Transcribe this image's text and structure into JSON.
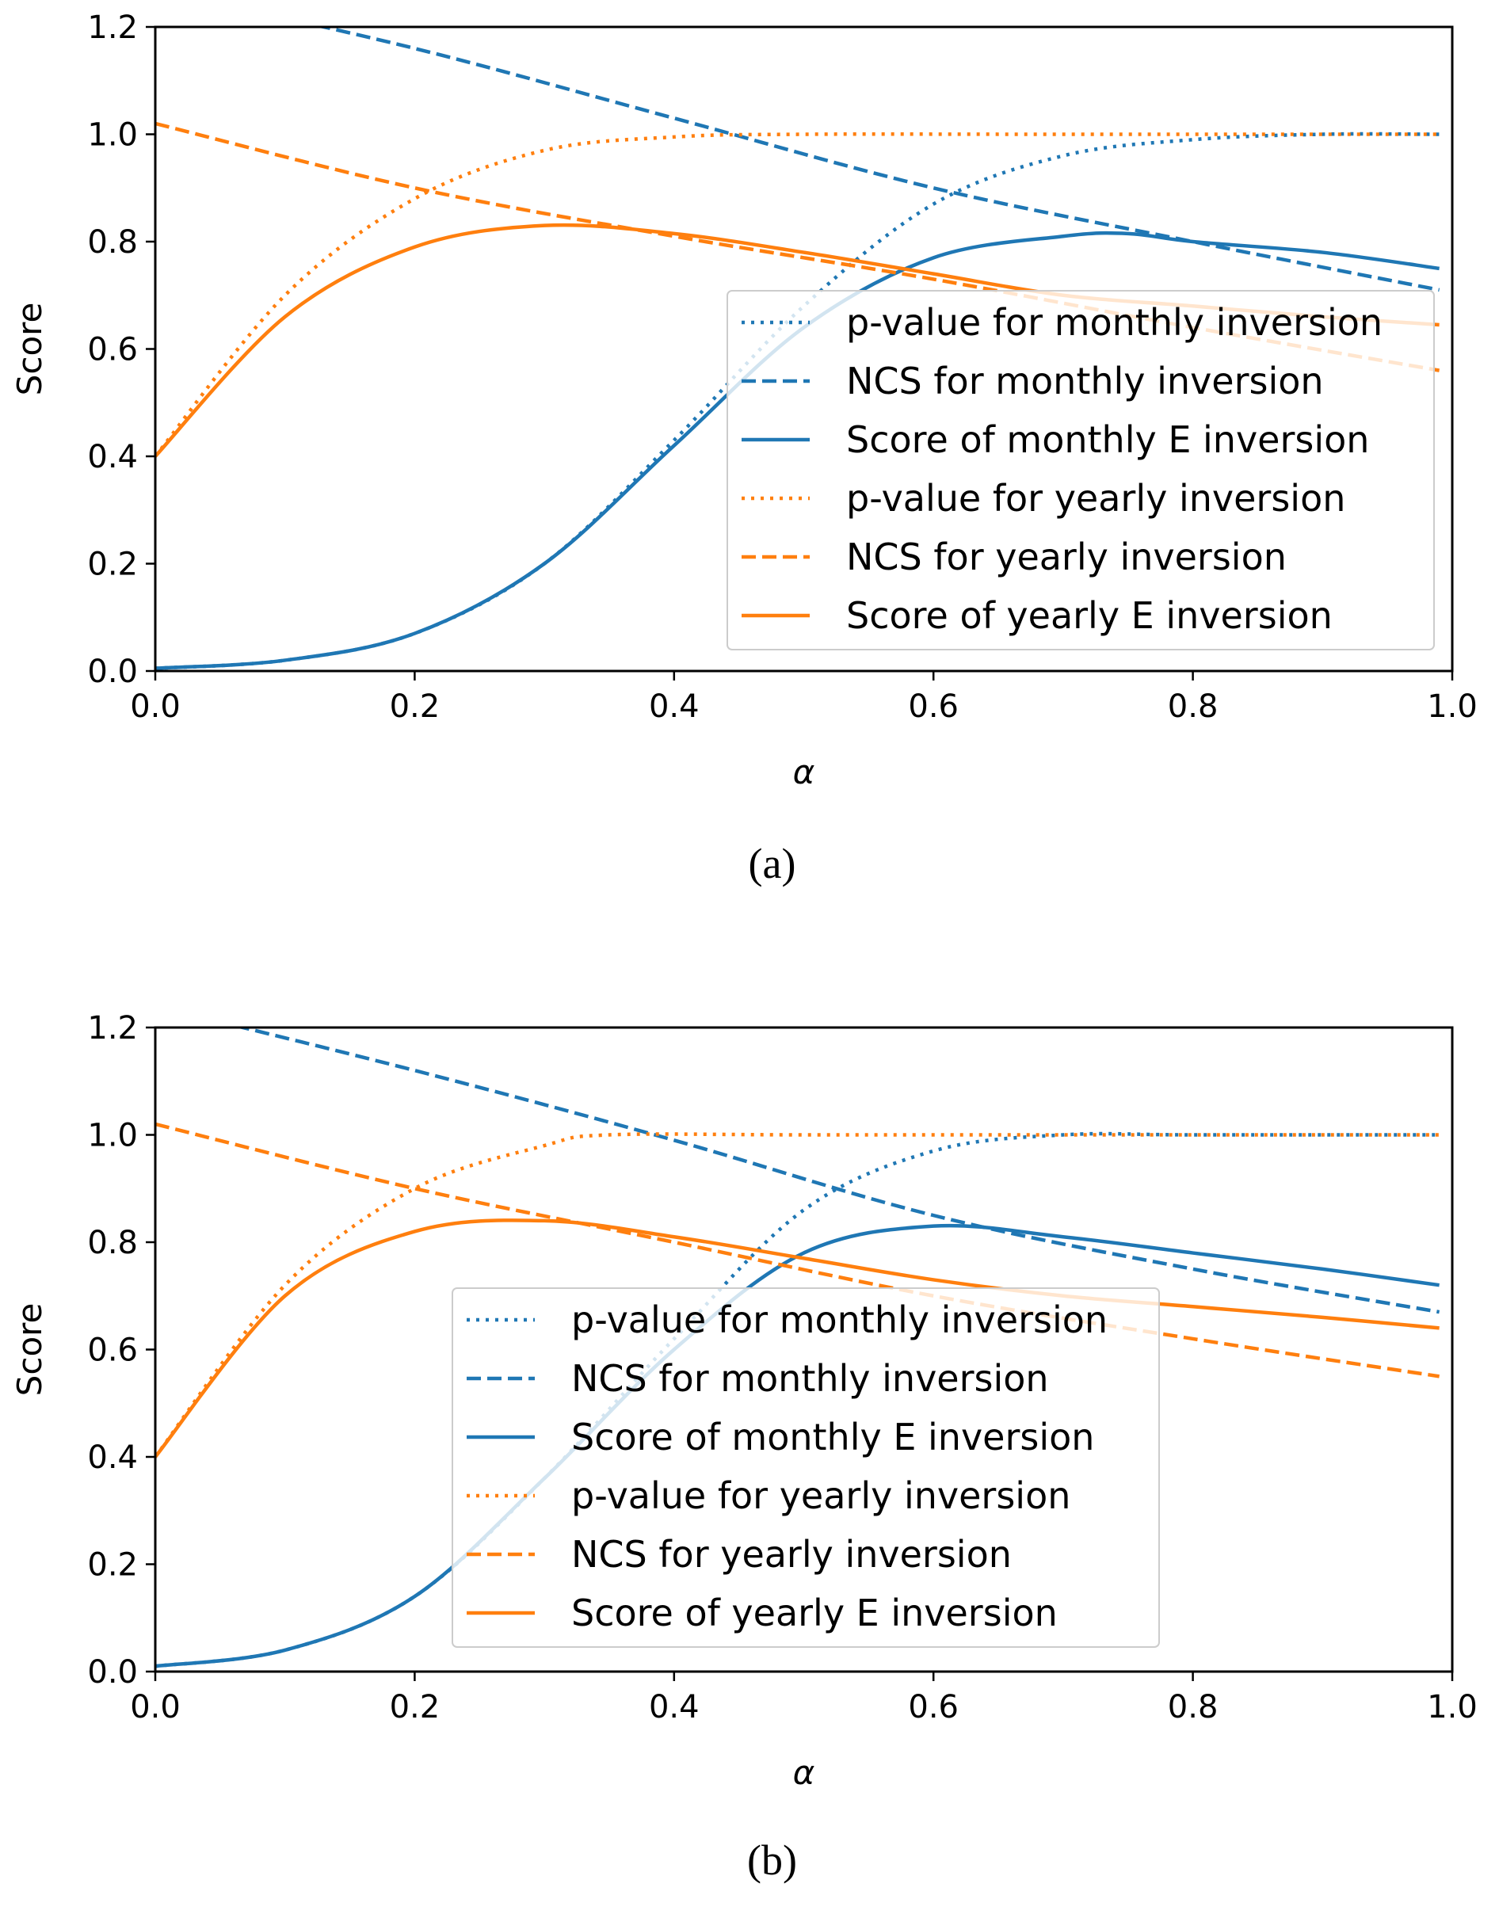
{
  "colors": {
    "monthly": "#1f77b4",
    "yearly": "#ff7f0e"
  },
  "chart_data": [
    {
      "type": "line",
      "caption": "(a)",
      "xlabel": "α",
      "ylabel": "Score",
      "xlim": [
        0,
        1.0
      ],
      "ylim": [
        0,
        1.2
      ],
      "xticks": [
        "0.0",
        "0.2",
        "0.4",
        "0.6",
        "0.8",
        "1.0"
      ],
      "yticks": [
        "0.0",
        "0.2",
        "0.4",
        "0.6",
        "0.8",
        "1.0",
        "1.2"
      ],
      "grid": false,
      "legend_position": "center-right",
      "series": [
        {
          "name": "p-value for monthly inversion",
          "color": "#1f77b4",
          "style": "dotted",
          "x": [
            0,
            0.1,
            0.2,
            0.3,
            0.4,
            0.5,
            0.6,
            0.7,
            0.8,
            0.9,
            0.99
          ],
          "y": [
            0.005,
            0.02,
            0.07,
            0.2,
            0.43,
            0.68,
            0.87,
            0.96,
            0.99,
            1.0,
            1.0
          ]
        },
        {
          "name": "NCS for monthly inversion",
          "color": "#1f77b4",
          "style": "dashed",
          "x": [
            0,
            0.2,
            0.4,
            0.6,
            0.8,
            0.99
          ],
          "y": [
            1.27,
            1.16,
            1.03,
            0.9,
            0.8,
            0.71
          ]
        },
        {
          "name": "Score of monthly E inversion",
          "color": "#1f77b4",
          "style": "solid",
          "x": [
            0,
            0.1,
            0.2,
            0.3,
            0.4,
            0.5,
            0.6,
            0.7,
            0.75,
            0.8,
            0.9,
            0.99
          ],
          "y": [
            0.005,
            0.02,
            0.07,
            0.2,
            0.42,
            0.64,
            0.77,
            0.81,
            0.815,
            0.8,
            0.78,
            0.75
          ]
        },
        {
          "name": "p-value for yearly inversion",
          "color": "#ff7f0e",
          "style": "dotted",
          "x": [
            0,
            0.1,
            0.2,
            0.3,
            0.4,
            0.5,
            0.7,
            0.99
          ],
          "y": [
            0.4,
            0.7,
            0.88,
            0.97,
            0.995,
            1.0,
            1.0,
            1.0
          ]
        },
        {
          "name": "NCS for yearly inversion",
          "color": "#ff7f0e",
          "style": "dashed",
          "x": [
            0,
            0.2,
            0.4,
            0.6,
            0.8,
            0.99
          ],
          "y": [
            1.02,
            0.9,
            0.81,
            0.73,
            0.64,
            0.56
          ]
        },
        {
          "name": "Score of yearly E inversion",
          "color": "#ff7f0e",
          "style": "solid",
          "x": [
            0,
            0.1,
            0.2,
            0.3,
            0.4,
            0.5,
            0.6,
            0.7,
            0.8,
            0.9,
            0.99
          ],
          "y": [
            0.4,
            0.66,
            0.79,
            0.83,
            0.815,
            0.78,
            0.74,
            0.7,
            0.68,
            0.66,
            0.645
          ]
        }
      ]
    },
    {
      "type": "line",
      "caption": "(b)",
      "xlabel": "α",
      "ylabel": "Score",
      "xlim": [
        0,
        1.0
      ],
      "ylim": [
        0,
        1.2
      ],
      "xticks": [
        "0.0",
        "0.2",
        "0.4",
        "0.6",
        "0.8",
        "1.0"
      ],
      "yticks": [
        "0.0",
        "0.2",
        "0.4",
        "0.6",
        "0.8",
        "1.0",
        "1.2"
      ],
      "grid": false,
      "legend_position": "lower-center",
      "series": [
        {
          "name": "p-value for monthly inversion",
          "color": "#1f77b4",
          "style": "dotted",
          "x": [
            0,
            0.1,
            0.2,
            0.3,
            0.4,
            0.5,
            0.6,
            0.7,
            0.8,
            0.99
          ],
          "y": [
            0.01,
            0.04,
            0.14,
            0.36,
            0.62,
            0.86,
            0.97,
            1.0,
            1.0,
            1.0
          ]
        },
        {
          "name": "NCS for monthly inversion",
          "color": "#1f77b4",
          "style": "dashed",
          "x": [
            0,
            0.2,
            0.4,
            0.6,
            0.8,
            0.99
          ],
          "y": [
            1.24,
            1.12,
            0.99,
            0.85,
            0.75,
            0.67
          ]
        },
        {
          "name": "Score of monthly E inversion",
          "color": "#1f77b4",
          "style": "solid",
          "x": [
            0,
            0.1,
            0.2,
            0.3,
            0.4,
            0.5,
            0.6,
            0.7,
            0.8,
            0.9,
            0.99
          ],
          "y": [
            0.01,
            0.04,
            0.14,
            0.36,
            0.6,
            0.78,
            0.83,
            0.81,
            0.78,
            0.75,
            0.72
          ]
        },
        {
          "name": "p-value for yearly inversion",
          "color": "#ff7f0e",
          "style": "dotted",
          "x": [
            0,
            0.1,
            0.2,
            0.3,
            0.35,
            0.5,
            0.7,
            0.99
          ],
          "y": [
            0.4,
            0.72,
            0.9,
            0.98,
            1.0,
            1.0,
            1.0,
            1.0
          ]
        },
        {
          "name": "NCS for yearly inversion",
          "color": "#ff7f0e",
          "style": "dashed",
          "x": [
            0,
            0.2,
            0.4,
            0.6,
            0.8,
            0.99
          ],
          "y": [
            1.02,
            0.9,
            0.8,
            0.7,
            0.62,
            0.55
          ]
        },
        {
          "name": "Score of yearly E inversion",
          "color": "#ff7f0e",
          "style": "solid",
          "x": [
            0,
            0.1,
            0.2,
            0.3,
            0.4,
            0.5,
            0.6,
            0.7,
            0.8,
            0.9,
            0.99
          ],
          "y": [
            0.4,
            0.7,
            0.82,
            0.84,
            0.81,
            0.77,
            0.73,
            0.7,
            0.68,
            0.66,
            0.64
          ]
        }
      ]
    }
  ]
}
